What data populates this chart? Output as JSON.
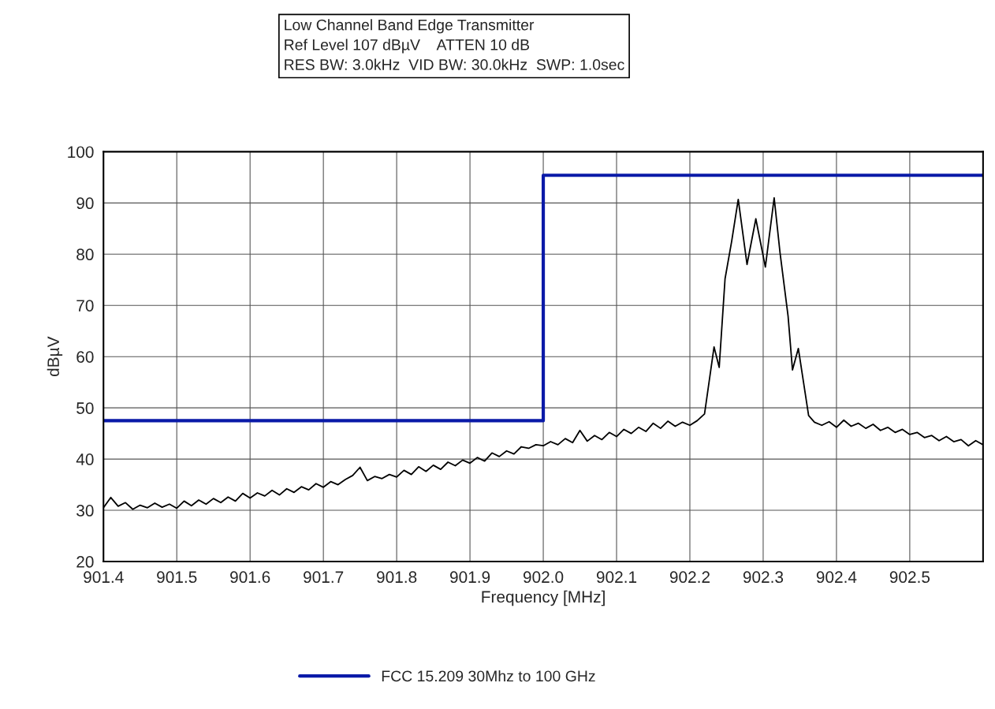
{
  "chart_data": {
    "type": "line",
    "title": "Low Channel Band Edge Transmitter",
    "subtitle": "Ref Level 107 dBµV    ATTEN 10 dB\nRES BW: 3.0kHz  VID BW: 30.0kHz  SWP: 1.0sec",
    "xlabel": "Frequency [MHz]",
    "ylabel": "dBµV",
    "series": [
      {
        "color": "#000000",
        "x": [
          901.4,
          901.41,
          901.42,
          901.43,
          901.44,
          901.45,
          901.46,
          901.47,
          901.48,
          901.49,
          901.5,
          901.51,
          901.52,
          901.53,
          901.54,
          901.55,
          901.56,
          901.57,
          901.58,
          901.59,
          901.6,
          901.61,
          901.62,
          901.63,
          901.64,
          901.65,
          901.66,
          901.67,
          901.68,
          901.69,
          901.7,
          901.71,
          901.72,
          901.73,
          901.74,
          901.75,
          901.76,
          901.77,
          901.78,
          901.79,
          901.8,
          901.81,
          901.82,
          901.83,
          901.84,
          901.85,
          901.86,
          901.87,
          901.88,
          901.89,
          901.9,
          901.91,
          901.92,
          901.93,
          901.94,
          901.95,
          901.96,
          901.97,
          901.98,
          901.99,
          902.0,
          902.01,
          902.02,
          902.03,
          902.04,
          902.05,
          902.06,
          902.07,
          902.08,
          902.09,
          902.1,
          902.11,
          902.12,
          902.13,
          902.14,
          902.15,
          902.16,
          902.17,
          902.18,
          902.19,
          902.2,
          902.21,
          902.22,
          902.233,
          902.24,
          902.248,
          902.257,
          902.266,
          902.278,
          902.29,
          902.303,
          902.315,
          902.323,
          902.334,
          902.34,
          902.348,
          902.362,
          902.37,
          902.38,
          902.39,
          902.4,
          902.41,
          902.42,
          902.43,
          902.44,
          902.45,
          902.46,
          902.47,
          902.48,
          902.49,
          902.5,
          902.51,
          902.52,
          902.53,
          902.54,
          902.55,
          902.56,
          902.57,
          902.58,
          902.59,
          902.6
        ],
        "values": [
          30.5,
          32.5,
          30.8,
          31.5,
          30.2,
          31.0,
          30.5,
          31.4,
          30.6,
          31.2,
          30.4,
          31.8,
          30.9,
          32.0,
          31.2,
          32.3,
          31.5,
          32.6,
          31.8,
          33.3,
          32.4,
          33.4,
          32.8,
          33.9,
          33.0,
          34.2,
          33.5,
          34.6,
          34.0,
          35.2,
          34.5,
          35.6,
          35.0,
          36.0,
          36.8,
          38.4,
          35.8,
          36.6,
          36.2,
          37.0,
          36.5,
          37.8,
          37.0,
          38.5,
          37.6,
          38.8,
          38.0,
          39.4,
          38.7,
          39.8,
          39.2,
          40.3,
          39.6,
          41.2,
          40.5,
          41.6,
          41.0,
          42.4,
          42.1,
          42.8,
          42.6,
          43.4,
          42.8,
          44.0,
          43.2,
          45.6,
          43.5,
          44.6,
          43.8,
          45.2,
          44.4,
          45.8,
          45.0,
          46.2,
          45.4,
          47.0,
          46.0,
          47.4,
          46.4,
          47.2,
          46.6,
          47.5,
          48.8,
          61.9,
          57.9,
          75.2,
          82.5,
          90.7,
          78.0,
          86.9,
          77.5,
          91.0,
          80.3,
          67.9,
          57.4,
          61.6,
          48.5,
          47.2,
          46.6,
          47.3,
          46.2,
          47.6,
          46.4,
          47.0,
          46.0,
          46.8,
          45.6,
          46.2,
          45.2,
          45.8,
          44.8,
          45.2,
          44.2,
          44.6,
          43.6,
          44.4,
          43.4,
          43.8,
          42.6,
          43.6,
          42.8
        ]
      },
      {
        "name": "FCC 15.209 30Mhz to 100 GHz",
        "color": "#0a1aa8",
        "x": [
          901.4,
          902.0,
          902.0,
          902.6
        ],
        "values": [
          47.5,
          47.5,
          95.4,
          95.4
        ]
      }
    ],
    "xlim": [
      901.4,
      902.6
    ],
    "xticks": [
      901.4,
      901.5,
      901.6,
      901.7,
      901.8,
      901.9,
      {
        "value": 902,
        "label": "902.0"
      },
      902.1,
      902.2,
      902.3,
      902.4,
      902.5
    ],
    "ylim": [
      20,
      100
    ],
    "yticks": [
      20,
      30,
      40,
      50,
      60,
      70,
      80,
      90,
      100
    ],
    "grid": true,
    "legend": "bottom",
    "marker": "none",
    "line_style": "solid"
  }
}
